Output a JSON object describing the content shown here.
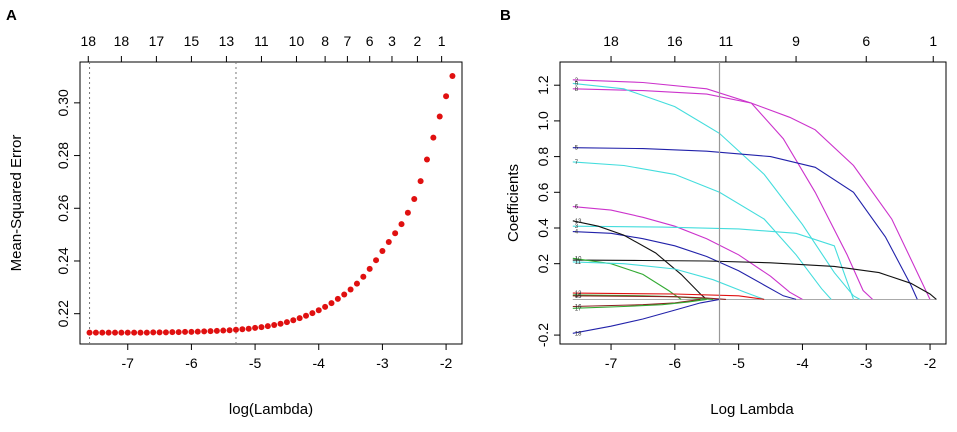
{
  "chart_data": [
    {
      "panel": "A",
      "type": "scatter",
      "xlabel": "log(Lambda)",
      "ylabel": "Mean-Squared Error",
      "xlim": [
        -7.75,
        -1.75
      ],
      "ylim": [
        0.2085,
        0.3155
      ],
      "x_ticks": [
        -7,
        -6,
        -5,
        -4,
        -3,
        -2
      ],
      "x_tick_labels": [
        "-7",
        "-6",
        "-5",
        "-4",
        "-3",
        "-2"
      ],
      "y_ticks": [
        0.22,
        0.24,
        0.26,
        0.28,
        0.3
      ],
      "y_tick_labels": [
        "0.22",
        "0.24",
        "0.26",
        "0.28",
        "0.30"
      ],
      "top_ticks": [
        -7.62,
        -7.1,
        -6.55,
        -6.0,
        -5.45,
        -4.9,
        -4.35,
        -3.9,
        -3.55,
        -3.2,
        -2.85,
        -2.45,
        -2.07
      ],
      "top_tick_labels": [
        "18",
        "18",
        "17",
        "15",
        "13",
        "11",
        "10",
        "8",
        "7",
        "6",
        "3",
        "2",
        "1"
      ],
      "vlines": [
        -7.6,
        -5.3
      ],
      "marker_color": "#e01010",
      "points": [
        [
          -7.6,
          0.2128
        ],
        [
          -7.5,
          0.2128
        ],
        [
          -7.4,
          0.2128
        ],
        [
          -7.3,
          0.2128
        ],
        [
          -7.2,
          0.2128
        ],
        [
          -7.1,
          0.2128
        ],
        [
          -7.0,
          0.2128
        ],
        [
          -6.9,
          0.2128
        ],
        [
          -6.8,
          0.2128
        ],
        [
          -6.7,
          0.2128
        ],
        [
          -6.6,
          0.2129
        ],
        [
          -6.5,
          0.2129
        ],
        [
          -6.4,
          0.2129
        ],
        [
          -6.3,
          0.213
        ],
        [
          -6.2,
          0.213
        ],
        [
          -6.1,
          0.2131
        ],
        [
          -6.0,
          0.2131
        ],
        [
          -5.9,
          0.2132
        ],
        [
          -5.8,
          0.2133
        ],
        [
          -5.7,
          0.2134
        ],
        [
          -5.6,
          0.2135
        ],
        [
          -5.5,
          0.2136
        ],
        [
          -5.4,
          0.2137
        ],
        [
          -5.3,
          0.2139
        ],
        [
          -5.2,
          0.2141
        ],
        [
          -5.1,
          0.2143
        ],
        [
          -5.0,
          0.2146
        ],
        [
          -4.9,
          0.2149
        ],
        [
          -4.8,
          0.2153
        ],
        [
          -4.7,
          0.2157
        ],
        [
          -4.6,
          0.2162
        ],
        [
          -4.5,
          0.2168
        ],
        [
          -4.4,
          0.2175
        ],
        [
          -4.3,
          0.2183
        ],
        [
          -4.2,
          0.2192
        ],
        [
          -4.1,
          0.2202
        ],
        [
          -4.0,
          0.2213
        ],
        [
          -3.9,
          0.2226
        ],
        [
          -3.8,
          0.224
        ],
        [
          -3.7,
          0.2256
        ],
        [
          -3.6,
          0.2273
        ],
        [
          -3.5,
          0.2292
        ],
        [
          -3.4,
          0.2314
        ],
        [
          -3.3,
          0.234
        ],
        [
          -3.2,
          0.237
        ],
        [
          -3.1,
          0.2403
        ],
        [
          -3.0,
          0.2438
        ],
        [
          -2.9,
          0.2472
        ],
        [
          -2.8,
          0.2505
        ],
        [
          -2.7,
          0.254
        ],
        [
          -2.6,
          0.2583
        ],
        [
          -2.5,
          0.2635
        ],
        [
          -2.4,
          0.2703
        ],
        [
          -2.3,
          0.2785
        ],
        [
          -2.2,
          0.2868
        ],
        [
          -2.1,
          0.2948
        ],
        [
          -2.0,
          0.3025
        ],
        [
          -1.9,
          0.3102
        ]
      ]
    },
    {
      "panel": "B",
      "type": "line",
      "xlabel": "Log Lambda",
      "ylabel": "Coefficients",
      "xlim": [
        -7.8,
        -1.75
      ],
      "ylim": [
        -0.25,
        1.33
      ],
      "x_ticks": [
        -7,
        -6,
        -5,
        -4,
        -3,
        -2
      ],
      "x_tick_labels": [
        "-7",
        "-6",
        "-5",
        "-4",
        "-3",
        "-2"
      ],
      "y_ticks": [
        -0.2,
        0.2,
        0.4,
        0.6,
        0.8,
        1.0,
        1.2
      ],
      "y_tick_labels": [
        "-0.2",
        "0.2",
        "0.4",
        "0.6",
        "0.8",
        "1.0",
        "1.2"
      ],
      "top_ticks": [
        -7,
        -6,
        -5.2,
        -4.1,
        -3.0,
        -1.95
      ],
      "top_tick_labels": [
        "18",
        "16",
        "11",
        "9",
        "6",
        "1"
      ],
      "vline": -5.3,
      "series": [
        {
          "name": "V2",
          "color": "#cc33cc",
          "label": "2",
          "x": [
            -7.6,
            -6.5,
            -5.5,
            -4.8,
            -4.3,
            -3.8,
            -3.3,
            -3.05,
            -2.9
          ],
          "values": [
            1.23,
            1.215,
            1.18,
            1.1,
            0.9,
            0.6,
            0.25,
            0.05,
            0.0
          ]
        },
        {
          "name": "V8",
          "color": "#cc33cc",
          "label": "8",
          "x": [
            -7.6,
            -6.5,
            -5.5,
            -4.8,
            -4.2,
            -3.8,
            -3.2,
            -2.6,
            -2.2,
            -2.0
          ],
          "values": [
            1.18,
            1.17,
            1.15,
            1.1,
            1.02,
            0.95,
            0.75,
            0.45,
            0.15,
            0.0
          ]
        },
        {
          "name": "V9",
          "color": "#44dddd",
          "label": "9",
          "x": [
            -7.6,
            -6.8,
            -6.0,
            -5.3,
            -4.6,
            -4.0,
            -3.5,
            -3.2,
            -3.1
          ],
          "values": [
            1.21,
            1.18,
            1.08,
            0.93,
            0.7,
            0.42,
            0.15,
            0.02,
            0.0
          ]
        },
        {
          "name": "V5",
          "color": "#2222aa",
          "label": "5",
          "x": [
            -7.6,
            -6.5,
            -5.5,
            -4.5,
            -3.8,
            -3.2,
            -2.7,
            -2.3,
            -2.2
          ],
          "values": [
            0.85,
            0.845,
            0.83,
            0.8,
            0.74,
            0.6,
            0.35,
            0.08,
            0.0
          ]
        },
        {
          "name": "V7",
          "color": "#44dddd",
          "label": "7",
          "x": [
            -7.6,
            -6.8,
            -6.0,
            -5.3,
            -4.6,
            -4.1,
            -3.7,
            -3.55
          ],
          "values": [
            0.77,
            0.75,
            0.7,
            0.6,
            0.45,
            0.25,
            0.06,
            0.0
          ]
        },
        {
          "name": "V6",
          "color": "#cc33cc",
          "label": "6",
          "x": [
            -7.6,
            -7.0,
            -6.5,
            -6.0,
            -5.5,
            -5.0,
            -4.5,
            -4.2,
            -4.0
          ],
          "values": [
            0.52,
            0.5,
            0.46,
            0.41,
            0.34,
            0.25,
            0.13,
            0.04,
            0.0
          ]
        },
        {
          "name": "V3",
          "color": "#44dddd",
          "label": "3",
          "x": [
            -7.6,
            -6.2,
            -5.0,
            -4.1,
            -3.5,
            -3.2
          ],
          "values": [
            0.41,
            0.405,
            0.395,
            0.37,
            0.3,
            0.0
          ]
        },
        {
          "name": "V4",
          "color": "#2222aa",
          "label": "4",
          "x": [
            -7.6,
            -7.0,
            -6.5,
            -6.0,
            -5.5,
            -5.0,
            -4.6,
            -4.3,
            -4.1
          ],
          "values": [
            0.38,
            0.37,
            0.34,
            0.3,
            0.24,
            0.16,
            0.08,
            0.02,
            0.0
          ]
        },
        {
          "name": "V13",
          "color": "#111111",
          "label": "13",
          "x": [
            -7.6,
            -7.2,
            -6.8,
            -6.3,
            -5.9,
            -5.6,
            -5.5
          ],
          "values": [
            0.44,
            0.41,
            0.36,
            0.26,
            0.14,
            0.03,
            0.0
          ]
        },
        {
          "name": "V1",
          "color": "#111111",
          "label": "1",
          "x": [
            -7.6,
            -6.5,
            -5.5,
            -4.5,
            -3.5,
            -2.8,
            -2.3,
            -2.0,
            -1.9
          ],
          "values": [
            0.22,
            0.218,
            0.215,
            0.205,
            0.185,
            0.15,
            0.09,
            0.03,
            0.0
          ]
        },
        {
          "name": "V10",
          "color": "#33aa33",
          "label": "10",
          "x": [
            -7.6,
            -7.0,
            -6.5,
            -6.1,
            -5.9
          ],
          "values": [
            0.23,
            0.2,
            0.14,
            0.05,
            0.0
          ]
        },
        {
          "name": "V11",
          "color": "#44dddd",
          "label": "11",
          "x": [
            -7.6,
            -6.8,
            -6.0,
            -5.4,
            -4.9,
            -4.6
          ],
          "values": [
            0.21,
            0.2,
            0.17,
            0.11,
            0.04,
            0.0
          ]
        },
        {
          "name": "V12",
          "color": "#e01010",
          "label": "12",
          "x": [
            -7.6,
            -6.0,
            -5.0,
            -4.6
          ],
          "values": [
            0.035,
            0.03,
            0.02,
            0.0
          ]
        },
        {
          "name": "V14",
          "color": "#33aa33",
          "label": "14",
          "x": [
            -7.6,
            -6.5,
            -6.0,
            -5.6,
            -5.4
          ],
          "values": [
            0.025,
            0.02,
            0.015,
            0.005,
            0.0
          ]
        },
        {
          "name": "V15",
          "color": "#8b2020",
          "label": "15",
          "x": [
            -7.6,
            -6.0,
            -5.5,
            -5.2
          ],
          "values": [
            0.02,
            0.015,
            0.008,
            0.0
          ]
        },
        {
          "name": "V16",
          "color": "#8b2020",
          "label": "16",
          "x": [
            -7.6,
            -6.5,
            -6.0,
            -5.6
          ],
          "values": [
            -0.04,
            -0.03,
            -0.02,
            0.0
          ]
        },
        {
          "name": "V17",
          "color": "#33aa33",
          "label": "17",
          "x": [
            -7.6,
            -6.8,
            -6.2,
            -5.8,
            -5.5
          ],
          "values": [
            -0.05,
            -0.04,
            -0.03,
            -0.015,
            0.0
          ]
        },
        {
          "name": "V18",
          "color": "#2222aa",
          "label": "18",
          "x": [
            -7.6,
            -7.0,
            -6.5,
            -6.0,
            -5.6,
            -5.3
          ],
          "values": [
            -0.19,
            -0.15,
            -0.11,
            -0.06,
            -0.02,
            0.0
          ]
        }
      ]
    }
  ]
}
